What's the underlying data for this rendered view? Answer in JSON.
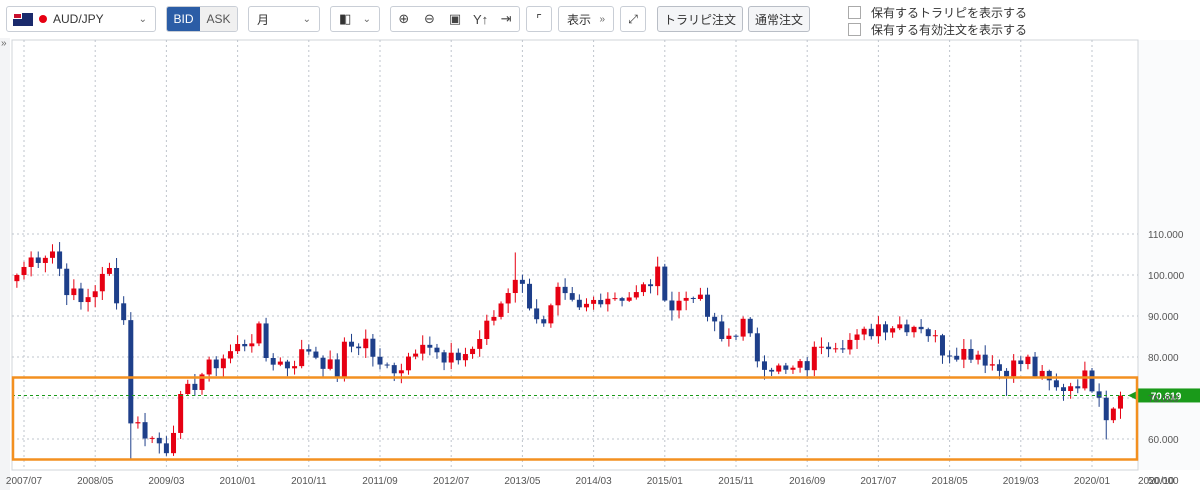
{
  "toolbar": {
    "pair": "AUD/JPY",
    "bid_label": "BID",
    "ask_label": "ASK",
    "period": "月",
    "display_label": "表示",
    "trailing_order": "トラリピ注文",
    "normal_order": "通常注文",
    "check_show_trailing": "保有するトラリピを表示する",
    "check_show_orders": "保有する有効注文を表示する"
  },
  "colors": {
    "up": "#e60012",
    "down": "#1e3f8a",
    "price_label": "#1a9a1a",
    "highlight_box": "#f39020"
  },
  "chart_data": {
    "type": "candlestick",
    "current_price": 70.619,
    "y_ticks": [
      "110.000",
      "100.000",
      "90.000",
      "80.000",
      "70.000",
      "60.000",
      "50.000"
    ],
    "x_ticks": [
      "2007/07",
      "2008/05",
      "2009/03",
      "2010/01",
      "2010/11",
      "2011/09",
      "2012/07",
      "2013/05",
      "2014/03",
      "2015/01",
      "2015/11",
      "2016/09",
      "2017/07",
      "2018/05",
      "2019/03",
      "2020/01",
      "2020/10",
      "202"
    ],
    "highlight_range": [
      55.0,
      75.0
    ],
    "anchors": [
      [
        "2007/06",
        100
      ],
      [
        "2007/08",
        104
      ],
      [
        "2007/11",
        106
      ],
      [
        "2008/01",
        97
      ],
      [
        "2008/03",
        93
      ],
      [
        "2008/07",
        101
      ],
      [
        "2008/09",
        89
      ],
      [
        "2008/10",
        65
      ],
      [
        "2009/01",
        60
      ],
      [
        "2009/03",
        58
      ],
      [
        "2009/05",
        69
      ],
      [
        "2009/08",
        76
      ],
      [
        "2009/11",
        80
      ],
      [
        "2010/04",
        86
      ],
      [
        "2010/05",
        80
      ],
      [
        "2010/08",
        78
      ],
      [
        "2010/11",
        82
      ],
      [
        "2011/03",
        76
      ],
      [
        "2011/04",
        82
      ],
      [
        "2011/07",
        84
      ],
      [
        "2011/09",
        77
      ],
      [
        "2011/12",
        78
      ],
      [
        "2012/03",
        85
      ],
      [
        "2012/06",
        78
      ],
      [
        "2012/10",
        82
      ],
      [
        "2013/01",
        90
      ],
      [
        "2013/04",
        100
      ],
      [
        "2013/08",
        87
      ],
      [
        "2013/10",
        95
      ],
      [
        "2014/01",
        91
      ],
      [
        "2014/04",
        95
      ],
      [
        "2014/09",
        95
      ],
      [
        "2014/12",
        100
      ],
      [
        "2015/02",
        92
      ],
      [
        "2015/05",
        96
      ],
      [
        "2015/09",
        84
      ],
      [
        "2015/12",
        88
      ],
      [
        "2016/02",
        80
      ],
      [
        "2016/06",
        76
      ],
      [
        "2016/09",
        78
      ],
      [
        "2016/11",
        84
      ],
      [
        "2017/04",
        84
      ],
      [
        "2017/07",
        88
      ],
      [
        "2018/01",
        88
      ],
      [
        "2018/04",
        82
      ],
      [
        "2018/09",
        81
      ],
      [
        "2018/12",
        77
      ],
      [
        "2019/04",
        79
      ],
      [
        "2019/05",
        76
      ],
      [
        "2019/08",
        72
      ],
      [
        "2019/12",
        75
      ],
      [
        "2020/02",
        72
      ],
      [
        "2020/03",
        66
      ],
      [
        "2020/05",
        70.6
      ]
    ]
  }
}
